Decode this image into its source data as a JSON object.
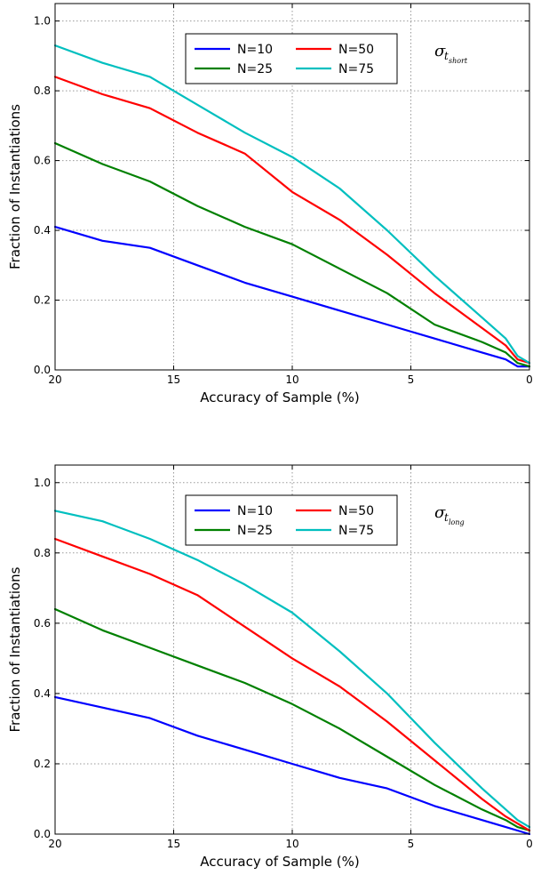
{
  "chart_data": [
    {
      "type": "line",
      "annotation": {
        "symbol": "σ",
        "sub": "t",
        "subsub": "short"
      },
      "xlabel": "Accuracy of Sample (%)",
      "ylabel": "Fraction of Instantiations",
      "xlim": [
        20,
        0
      ],
      "ylim": [
        0,
        1.05
      ],
      "xticks": [
        "20",
        "15",
        "10",
        "5",
        "0"
      ],
      "yticks": [
        "0.0",
        "0.2",
        "0.4",
        "0.6",
        "0.8",
        "1.0"
      ],
      "grid": true,
      "legend_position": "top-center",
      "x": [
        20,
        18,
        16,
        14,
        12,
        10,
        8,
        6,
        4,
        2,
        1,
        0.5,
        0
      ],
      "series": [
        {
          "name": "N=10",
          "color": "#0000ff",
          "values": [
            0.41,
            0.37,
            0.35,
            0.3,
            0.25,
            0.21,
            0.17,
            0.13,
            0.09,
            0.05,
            0.03,
            0.01,
            0.01
          ]
        },
        {
          "name": "N=25",
          "color": "#008000",
          "values": [
            0.65,
            0.59,
            0.54,
            0.47,
            0.41,
            0.36,
            0.29,
            0.22,
            0.13,
            0.08,
            0.05,
            0.02,
            0.01
          ]
        },
        {
          "name": "N=50",
          "color": "#ff0000",
          "values": [
            0.84,
            0.79,
            0.75,
            0.68,
            0.62,
            0.51,
            0.43,
            0.33,
            0.22,
            0.12,
            0.07,
            0.03,
            0.02
          ]
        },
        {
          "name": "N=75",
          "color": "#00bfbf",
          "values": [
            0.93,
            0.88,
            0.84,
            0.76,
            0.68,
            0.61,
            0.52,
            0.4,
            0.27,
            0.15,
            0.09,
            0.04,
            0.02
          ]
        }
      ]
    },
    {
      "type": "line",
      "annotation": {
        "symbol": "σ",
        "sub": "t",
        "subsub": "long"
      },
      "xlabel": "Accuracy of Sample (%)",
      "ylabel": "Fraction of Instantiations",
      "xlim": [
        20,
        0
      ],
      "ylim": [
        0,
        1.05
      ],
      "xticks": [
        "20",
        "15",
        "10",
        "5",
        "0"
      ],
      "yticks": [
        "0.0",
        "0.2",
        "0.4",
        "0.6",
        "0.8",
        "1.0"
      ],
      "grid": true,
      "legend_position": "top-center",
      "x": [
        20,
        18,
        16,
        14,
        12,
        10,
        8,
        6,
        4,
        2,
        1,
        0.5,
        0
      ],
      "series": [
        {
          "name": "N=10",
          "color": "#0000ff",
          "values": [
            0.39,
            0.36,
            0.33,
            0.28,
            0.24,
            0.2,
            0.16,
            0.13,
            0.08,
            0.04,
            0.02,
            0.01,
            0.0
          ]
        },
        {
          "name": "N=25",
          "color": "#008000",
          "values": [
            0.64,
            0.58,
            0.53,
            0.48,
            0.43,
            0.37,
            0.3,
            0.22,
            0.14,
            0.07,
            0.04,
            0.02,
            0.01
          ]
        },
        {
          "name": "N=50",
          "color": "#ff0000",
          "values": [
            0.84,
            0.79,
            0.74,
            0.68,
            0.59,
            0.5,
            0.42,
            0.32,
            0.21,
            0.1,
            0.05,
            0.03,
            0.01
          ]
        },
        {
          "name": "N=75",
          "color": "#00bfbf",
          "values": [
            0.92,
            0.89,
            0.84,
            0.78,
            0.71,
            0.63,
            0.52,
            0.4,
            0.26,
            0.13,
            0.07,
            0.04,
            0.02
          ]
        }
      ]
    }
  ]
}
